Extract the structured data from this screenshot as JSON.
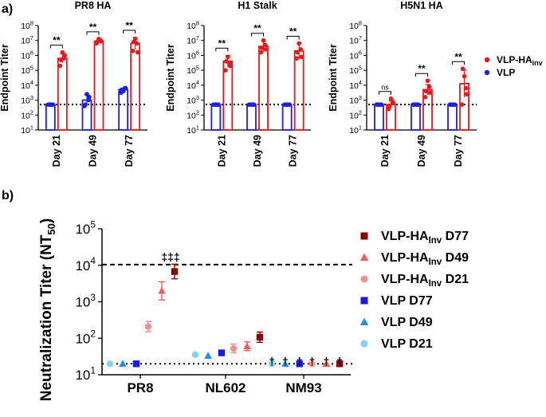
{
  "panel_a": {
    "label": "a)",
    "ylabel": "Endpoint Titer",
    "legend": [
      {
        "name": "VLP-HA",
        "sub": "inv",
        "color": "#e41a1c"
      },
      {
        "name": "VLP",
        "sub": "",
        "color": "#1f1fe0"
      }
    ],
    "y_ticks": [
      {
        "base": "10",
        "exp": "1",
        "v": 1
      },
      {
        "base": "10",
        "exp": "2",
        "v": 2
      },
      {
        "base": "10",
        "exp": "3",
        "v": 3
      },
      {
        "base": "10",
        "exp": "4",
        "v": 4
      },
      {
        "base": "10",
        "exp": "5",
        "v": 5
      },
      {
        "base": "10",
        "exp": "6",
        "v": 6
      },
      {
        "base": "10",
        "exp": "7",
        "v": 7
      },
      {
        "base": "10",
        "exp": "8",
        "v": 8
      }
    ],
    "categories": [
      "Day 21",
      "Day 49",
      "Day 77"
    ]
  },
  "panel_b": {
    "label": "b)",
    "ylabel": "Neutralization Titer (NT",
    "ylabel_sub": "50",
    "ylabel_end": ")",
    "y_ticks": [
      {
        "base": "10",
        "exp": "1",
        "v": 1
      },
      {
        "base": "10",
        "exp": "2",
        "v": 2
      },
      {
        "base": "10",
        "exp": "3",
        "v": 3
      },
      {
        "base": "10",
        "exp": "4",
        "v": 4
      },
      {
        "base": "10",
        "exp": "5",
        "v": 5
      }
    ],
    "legend": [
      {
        "name": "VLP-HA",
        "sub": "Inv",
        "suffix": " D77",
        "color": "#8b0000",
        "shape": "square"
      },
      {
        "name": "VLP-HA",
        "sub": "Inv",
        "suffix": " D49",
        "color": "#f25c5c",
        "shape": "triangle"
      },
      {
        "name": "VLP-HA",
        "sub": "Inv",
        "suffix": " D21",
        "color": "#f4908c",
        "shape": "circle"
      },
      {
        "name": "VLP D77",
        "sub": "",
        "suffix": "",
        "color": "#1a1ae6",
        "shape": "square"
      },
      {
        "name": "VLP D49",
        "sub": "",
        "suffix": "",
        "color": "#1e8fff",
        "shape": "triangle"
      },
      {
        "name": "VLP D21",
        "sub": "",
        "suffix": "",
        "color": "#7fd3f5",
        "shape": "circle"
      }
    ]
  },
  "chart_data": [
    {
      "type": "bar",
      "title": "PR8 HA",
      "xlabel": "",
      "ylabel": "Endpoint Titer",
      "yscale": "log10",
      "ylim_log10": [
        1,
        8
      ],
      "detection_limit_log10": 2.7,
      "categories": [
        "Day 21",
        "Day 49",
        "Day 77"
      ],
      "series": [
        {
          "name": "VLP",
          "values_log10": [
            2.7,
            3.0,
            3.7
          ],
          "err_log10": [
            0.0,
            0.35,
            0.1
          ],
          "points_log10": [
            [
              2.7,
              2.7,
              2.7,
              2.7,
              2.7
            ],
            [
              2.6,
              3.0,
              3.4,
              2.7,
              3.2
            ],
            [
              3.5,
              3.8,
              3.6,
              3.7,
              3.8
            ]
          ]
        },
        {
          "name": "VLP-HAinv",
          "values_log10": [
            5.8,
            6.95,
            6.8
          ],
          "err_log10": [
            0.3,
            0.15,
            0.4
          ],
          "points_log10": [
            [
              5.3,
              5.8,
              6.2,
              5.7,
              6.0
            ],
            [
              6.8,
              7.0,
              7.1,
              6.9,
              6.95
            ],
            [
              6.3,
              6.8,
              7.1,
              6.9,
              6.2
            ]
          ]
        }
      ],
      "annotations": [
        "**",
        "**",
        "**"
      ]
    },
    {
      "type": "bar",
      "title": "H1 Stalk",
      "xlabel": "",
      "ylabel": "Endpoint Titer",
      "yscale": "log10",
      "ylim_log10": [
        1,
        8
      ],
      "detection_limit_log10": 2.7,
      "categories": [
        "Day 21",
        "Day 49",
        "Day 77"
      ],
      "series": [
        {
          "name": "VLP",
          "values_log10": [
            2.7,
            2.7,
            2.7
          ],
          "err_log10": [
            0,
            0,
            0
          ],
          "points_log10": [
            [
              2.7,
              2.7,
              2.7,
              2.7,
              2.7
            ],
            [
              2.7,
              2.7,
              2.7,
              2.7,
              2.7
            ],
            [
              2.7,
              2.7,
              2.7,
              2.7,
              2.7
            ]
          ]
        },
        {
          "name": "VLP-HAinv",
          "values_log10": [
            5.6,
            6.6,
            6.3
          ],
          "err_log10": [
            0.4,
            0.35,
            0.5
          ],
          "points_log10": [
            [
              5.0,
              5.5,
              5.9,
              5.6,
              5.3
            ],
            [
              6.2,
              6.7,
              7.0,
              6.5,
              6.4
            ],
            [
              5.8,
              6.4,
              6.8,
              6.2,
              5.9
            ]
          ]
        }
      ],
      "annotations": [
        "**",
        "**",
        "**"
      ]
    },
    {
      "type": "bar",
      "title": "H5N1 HA",
      "xlabel": "",
      "ylabel": "Endpoint Titer",
      "yscale": "log10",
      "ylim_log10": [
        1,
        8
      ],
      "detection_limit_log10": 2.7,
      "categories": [
        "Day 21",
        "Day 49",
        "Day 77"
      ],
      "series": [
        {
          "name": "VLP",
          "values_log10": [
            2.7,
            2.7,
            2.7
          ],
          "err_log10": [
            0,
            0,
            0
          ],
          "points_log10": [
            [
              2.7,
              2.7,
              2.7,
              2.7,
              2.7
            ],
            [
              2.7,
              2.7,
              2.7,
              2.7,
              2.7
            ],
            [
              2.7,
              2.7,
              2.7,
              2.7,
              2.7
            ]
          ]
        },
        {
          "name": "VLP-HAinv",
          "values_log10": [
            2.7,
            3.7,
            4.1
          ],
          "err_log10": [
            0.25,
            0.35,
            0.9
          ],
          "points_log10": [
            [
              2.4,
              2.9,
              3.1,
              2.6,
              2.8
            ],
            [
              3.2,
              3.9,
              4.3,
              3.6,
              3.5
            ],
            [
              2.7,
              3.8,
              4.6,
              5.1,
              3.4
            ]
          ]
        }
      ],
      "annotations": [
        "ns",
        "**",
        "**"
      ]
    },
    {
      "type": "scatter",
      "title": "",
      "xlabel": "",
      "ylabel": "Neutralization Titer (NT50)",
      "yscale": "log10",
      "ylim_log10": [
        1,
        5
      ],
      "categories": [
        "PR8",
        "NL602",
        "NM93"
      ],
      "reference_lines_log10": [
        {
          "value": 4.02,
          "style": "dashed"
        },
        {
          "value": 1.3,
          "style": "dotted"
        }
      ],
      "series": [
        {
          "name": "VLP D21",
          "values_log10": [
            1.3,
            1.55,
            1.3
          ]
        },
        {
          "name": "VLP D49",
          "values_log10": [
            1.3,
            1.52,
            1.3
          ]
        },
        {
          "name": "VLP D77",
          "values_log10": [
            1.3,
            1.6,
            1.3
          ]
        },
        {
          "name": "VLP-HAInv D21",
          "values_log10": [
            2.32,
            1.72,
            1.3
          ],
          "err_log10": [
            0.14,
            0.12,
            0
          ]
        },
        {
          "name": "VLP-HAInv D49",
          "values_log10": [
            3.3,
            1.78,
            1.3
          ],
          "err_log10": [
            0.25,
            0.12,
            0
          ]
        },
        {
          "name": "VLP-HAInv D77",
          "values_log10": [
            3.83,
            2.03,
            1.3
          ],
          "err_log10": [
            0.2,
            0.14,
            0
          ]
        }
      ],
      "annotations": [
        "‡‡‡",
        "†",
        "†",
        "†",
        "†",
        "†",
        "†"
      ]
    }
  ]
}
